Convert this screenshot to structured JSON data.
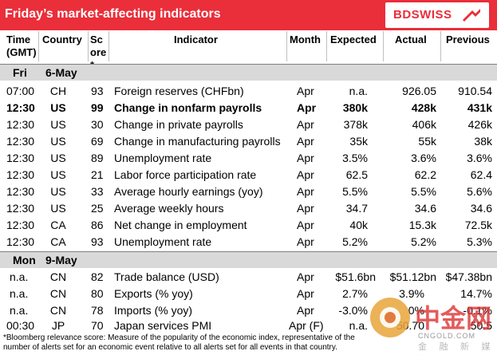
{
  "header": {
    "title": "Friday’s market-affecting indicators",
    "logo_text": "BDSWISS",
    "brand_color": "#ea2e3a"
  },
  "columns": {
    "time": "Time (GMT)",
    "country": "Country",
    "score": "Score*",
    "indicator": "Indicator",
    "month": "Month",
    "expected": "Expected",
    "actual": "Actual",
    "previous": "Previous"
  },
  "sections": [
    {
      "day": "Fri",
      "date": "6-May",
      "rows": [
        {
          "time": "07:00",
          "country": "CH",
          "score": "93",
          "indicator": "Foreign reserves (CHFbn)",
          "month": "Apr",
          "expected": "n.a.",
          "actual": "926.05",
          "previous": "910.54",
          "bold": false
        },
        {
          "time": "12:30",
          "country": "US",
          "score": "99",
          "indicator": "Change in nonfarm payrolls",
          "month": "Apr",
          "expected": "380k",
          "actual": "428k",
          "previous": "431k",
          "bold": true
        },
        {
          "time": "12:30",
          "country": "US",
          "score": "30",
          "indicator": "Change in private payrolls",
          "month": "Apr",
          "expected": "378k",
          "actual": "406k",
          "previous": "426k",
          "bold": false
        },
        {
          "time": "12:30",
          "country": "US",
          "score": "69",
          "indicator": "Change in manufacturing payrolls",
          "month": "Apr",
          "expected": "35k",
          "actual": "55k",
          "previous": "38k",
          "bold": false
        },
        {
          "time": "12:30",
          "country": "US",
          "score": "89",
          "indicator": "Unemployment rate",
          "month": "Apr",
          "expected": "3.5%",
          "actual": "3.6%",
          "previous": "3.6%",
          "bold": false
        },
        {
          "time": "12:30",
          "country": "US",
          "score": "21",
          "indicator": "Labor force participation rate",
          "month": "Apr",
          "expected": "62.5",
          "actual": "62.2",
          "previous": "62.4",
          "bold": false
        },
        {
          "time": "12:30",
          "country": "US",
          "score": "33",
          "indicator": "Average hourly earnings (yoy)",
          "month": "Apr",
          "expected": "5.5%",
          "actual": "5.5%",
          "previous": "5.6%",
          "bold": false
        },
        {
          "time": "12:30",
          "country": "US",
          "score": "25",
          "indicator": "Average weekly hours",
          "month": "Apr",
          "expected": "34.7",
          "actual": "34.6",
          "previous": "34.6",
          "bold": false
        },
        {
          "time": "12:30",
          "country": "CA",
          "score": "86",
          "indicator": "Net change in employment",
          "month": "Apr",
          "expected": "40k",
          "actual": "15.3k",
          "previous": "72.5k",
          "bold": false
        },
        {
          "time": "12:30",
          "country": "CA",
          "score": "93",
          "indicator": "Unemployment rate",
          "month": "Apr",
          "expected": "5.2%",
          "actual": "5.2%",
          "previous": "5.3%",
          "bold": false
        }
      ]
    },
    {
      "day": "Mon",
      "date": "9-May",
      "rows": [
        {
          "time": "n.a.",
          "country": "CN",
          "score": "82",
          "indicator": "Trade balance (USD)",
          "month": "Apr",
          "expected": "$51.6bn",
          "actual": "$51.12bn",
          "previous": "$47.38bn",
          "bold": false
        },
        {
          "time": "n.a.",
          "country": "CN",
          "score": "80",
          "indicator": "Exports (% yoy)",
          "month": "Apr",
          "expected": "2.7%",
          "actual": "3.9%",
          "previous": "14.7%",
          "bold": false
        },
        {
          "time": "n.a.",
          "country": "CN",
          "score": "78",
          "indicator": "Imports (% yoy)",
          "month": "Apr",
          "expected": "-3.0%",
          "actual": "0%",
          "previous": "-0.1%",
          "bold": false
        },
        {
          "time": "00:30",
          "country": "JP",
          "score": "70",
          "indicator": "Japan services PMI",
          "month": "Apr (F)",
          "expected": "n.a.",
          "actual": "50.70",
          "previous": "50.5",
          "bold": false
        }
      ]
    }
  ],
  "footnote": "*Bloomberg relevance score: Measure of the popularity of the economic index, representative of the number of alerts set for an economic event relative to all alerts set for all events in that country.",
  "watermark": {
    "text": "中金网",
    "sub": "CNGOLD.COM",
    "sub2": "金 融 新 媒 体"
  }
}
